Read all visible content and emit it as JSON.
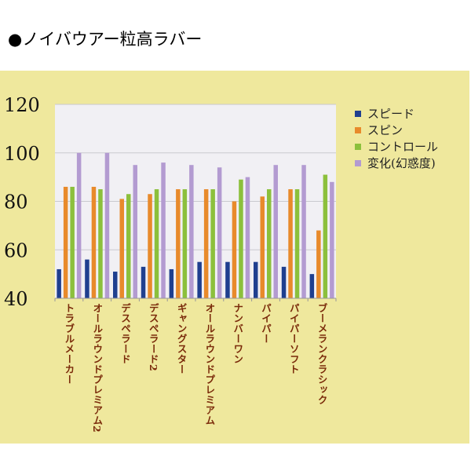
{
  "title": "●ノイバウアー粒高ラバー",
  "chart_data": {
    "type": "bar",
    "categories": [
      "トラブルメーカー",
      "オールラウンドプレミアム2",
      "デスペラード",
      "デスペラード2",
      "ギャングスター",
      "オールラウンドプレミアム",
      "ナンバーワン",
      "パイパー",
      "パイパーソフト",
      "ブーメランクラシック"
    ],
    "series": [
      {
        "name": "スピード",
        "color": "#1f3f8f",
        "values": [
          52,
          56,
          51,
          53,
          52,
          55,
          55,
          55,
          53,
          50
        ]
      },
      {
        "name": "スピン",
        "color": "#e88a2b",
        "values": [
          86,
          86,
          81,
          83,
          85,
          85,
          80,
          82,
          85,
          68
        ]
      },
      {
        "name": "コントロール",
        "color": "#8cc03c",
        "values": [
          86,
          85,
          83,
          85,
          85,
          85,
          89,
          85,
          85,
          91
        ]
      },
      {
        "name": "変化(幻惑度)",
        "color": "#b39bd1",
        "values": [
          100,
          100,
          95,
          96,
          95,
          94,
          90,
          95,
          95,
          88
        ]
      }
    ],
    "yticks": [
      40,
      60,
      80,
      100,
      120
    ],
    "ylim": [
      40,
      120
    ],
    "grid": true,
    "legend_position": "right",
    "plot_background": "#f1f0f4",
    "panel_background": "#efe89d",
    "category_label_color": "#7a2a0a"
  }
}
